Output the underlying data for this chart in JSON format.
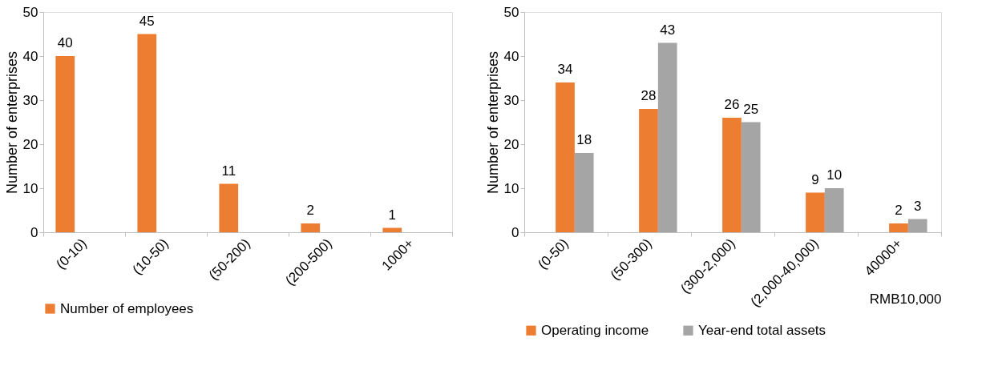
{
  "chart_data": [
    {
      "type": "bar",
      "ylabel": "Number of enterprises",
      "categories": [
        "(0-10)",
        "(10-50)",
        "(50-200)",
        "(200-500)",
        "1000+"
      ],
      "series": [
        {
          "name": "Number of employees",
          "color": "#ed7d31",
          "values": [
            40,
            45,
            11,
            2,
            1
          ]
        }
      ],
      "ylim": [
        0,
        50
      ],
      "yticks": [
        0,
        10,
        20,
        30,
        40,
        50
      ],
      "grid": false,
      "legend": "bottom",
      "data_labels": true
    },
    {
      "type": "bar",
      "ylabel": "Number of enterprises",
      "xlabel": "RMB10,000",
      "categories": [
        "(0-50)",
        "(50-300)",
        "(300-2,000)",
        "(2,000-40,000)",
        "40000+"
      ],
      "series": [
        {
          "name": "Operating income",
          "color": "#ed7d31",
          "values": [
            34,
            28,
            26,
            9,
            2
          ]
        },
        {
          "name": "Year-end total assets",
          "color": "#a5a5a5",
          "values": [
            18,
            43,
            25,
            10,
            3
          ]
        }
      ],
      "ylim": [
        0,
        50
      ],
      "yticks": [
        0,
        10,
        20,
        30,
        40,
        50
      ],
      "grid": false,
      "legend": "bottom",
      "data_labels": true
    }
  ]
}
